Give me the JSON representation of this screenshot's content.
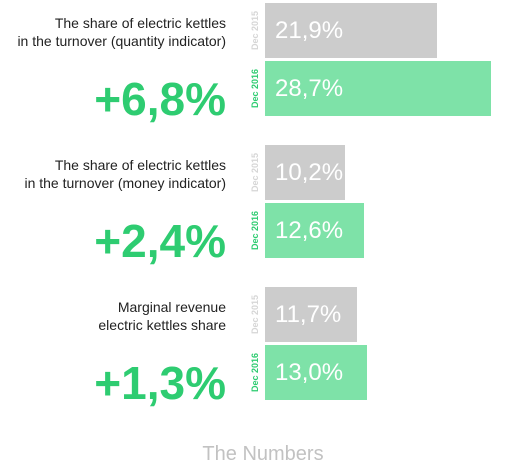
{
  "chart_data": {
    "type": "bar",
    "orientation": "horizontal",
    "legend": "none",
    "grid": false,
    "series": [
      {
        "name": "Dec 2015",
        "color": "#cccccc"
      },
      {
        "name": "Dec 2016",
        "color": "#7ee2a8"
      }
    ],
    "groups": [
      {
        "label": "The share of electric kettles in the turnover (quantity indicator)",
        "label_lines": [
          "The share of electric kettles",
          "in the turnover (quantity indicator)"
        ],
        "change": "+6,8%",
        "values": [
          21.9,
          28.7
        ],
        "value_labels": [
          "21,9%",
          "28,7%"
        ]
      },
      {
        "label": "The share of electric kettles in the turnover (money indicator)",
        "label_lines": [
          "The share of electric kettles",
          "in the turnover (money indicator)"
        ],
        "change": "+2,4%",
        "values": [
          10.2,
          12.6
        ],
        "value_labels": [
          "10,2%",
          "12,6%"
        ]
      },
      {
        "label": "Marginal revenue electric kettles share",
        "label_lines": [
          "Marginal revenue",
          "electric kettles share"
        ],
        "change": "+1,3%",
        "values": [
          11.7,
          13.0
        ],
        "value_labels": [
          "11,7%",
          "13,0%"
        ]
      }
    ],
    "change_color": "#2ecc71",
    "footer": "The Numbers"
  }
}
